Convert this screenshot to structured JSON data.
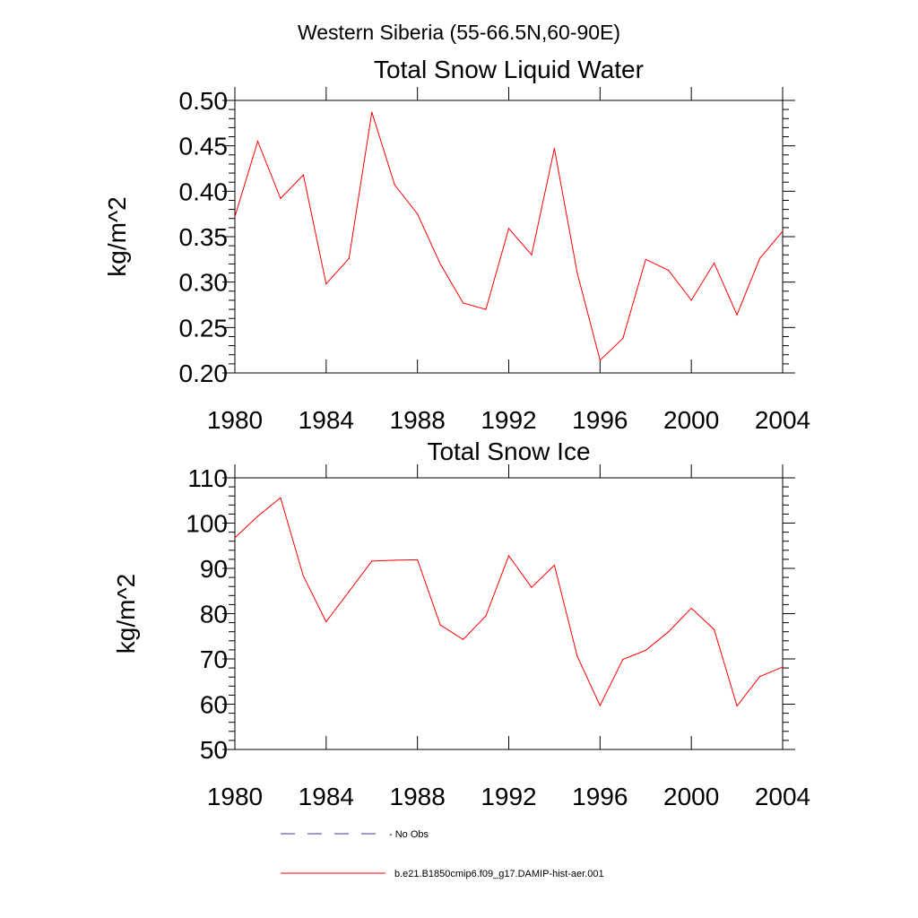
{
  "figure": {
    "title": "Western Siberia (55-66.5N,60-90E)"
  },
  "chart_data": [
    {
      "type": "line",
      "title": "Total Snow Liquid Water",
      "xlabel": "",
      "ylabel": "kg/m^2",
      "xlim": [
        1980,
        2004
      ],
      "ylim": [
        0.2,
        0.5
      ],
      "x_ticks": [
        1980,
        1984,
        1988,
        1992,
        1996,
        2000,
        2004
      ],
      "x_tick_labels": [
        "1980",
        "1984",
        "1988",
        "1992",
        "1996",
        "2000",
        "2004"
      ],
      "y_ticks": [
        0.2,
        0.25,
        0.3,
        0.35,
        0.4,
        0.45,
        0.5
      ],
      "y_tick_labels": [
        "0.20",
        "0.25",
        "0.30",
        "0.35",
        "0.40",
        "0.45",
        "0.50"
      ],
      "grid": false,
      "x": [
        1980,
        1981,
        1982,
        1983,
        1984,
        1985,
        1986,
        1987,
        1988,
        1989,
        1990,
        1991,
        1992,
        1993,
        1994,
        1995,
        1996,
        1997,
        1998,
        1999,
        2000,
        2001,
        2002,
        2003,
        2004
      ],
      "series": [
        {
          "name": "b.e21.B1850cmip6.f09_g17.DAMIP-hist-aer.001",
          "color": "#ff0000",
          "values": [
            0.372,
            0.455,
            0.392,
            0.418,
            0.298,
            0.326,
            0.487,
            0.407,
            0.375,
            0.32,
            0.277,
            0.27,
            0.359,
            0.33,
            0.447,
            0.31,
            0.214,
            0.238,
            0.325,
            0.313,
            0.28,
            0.321,
            0.264,
            0.326,
            0.356
          ]
        }
      ]
    },
    {
      "type": "line",
      "title": "Total Snow Ice",
      "xlabel": "",
      "ylabel": "kg/m^2",
      "xlim": [
        1980,
        2004
      ],
      "ylim": [
        50,
        110
      ],
      "x_ticks": [
        1980,
        1984,
        1988,
        1992,
        1996,
        2000,
        2004
      ],
      "x_tick_labels": [
        "1980",
        "1984",
        "1988",
        "1992",
        "1996",
        "2000",
        "2004"
      ],
      "y_ticks": [
        50,
        60,
        70,
        80,
        90,
        100,
        110
      ],
      "y_tick_labels": [
        "50",
        "60",
        "70",
        "80",
        "90",
        "100",
        "110"
      ],
      "grid": false,
      "x": [
        1980,
        1981,
        1982,
        1983,
        1984,
        1985,
        1986,
        1987,
        1988,
        1989,
        1990,
        1991,
        1992,
        1993,
        1994,
        1995,
        1996,
        1997,
        1998,
        1999,
        2000,
        2001,
        2002,
        2003,
        2004
      ],
      "series": [
        {
          "name": "b.e21.B1850cmip6.f09_g17.DAMIP-hist-aer.001",
          "color": "#ff0000",
          "values": [
            96.8,
            101.5,
            105.6,
            88.3,
            78.2,
            84.9,
            91.6,
            91.8,
            91.9,
            77.5,
            74.3,
            79.5,
            92.8,
            85.8,
            90.7,
            70.6,
            59.7,
            69.9,
            71.9,
            76.0,
            81.2,
            76.5,
            59.6,
            66.1,
            68.2
          ]
        }
      ]
    }
  ],
  "legend": {
    "placement": "bottom",
    "entries": [
      {
        "label": "- No Obs",
        "color": "#3a3aa0",
        "style": "dashed"
      },
      {
        "label": "b.e21.B1850cmip6.f09_g17.DAMIP-hist-aer.001",
        "color": "#ff0000",
        "style": "solid"
      }
    ]
  }
}
